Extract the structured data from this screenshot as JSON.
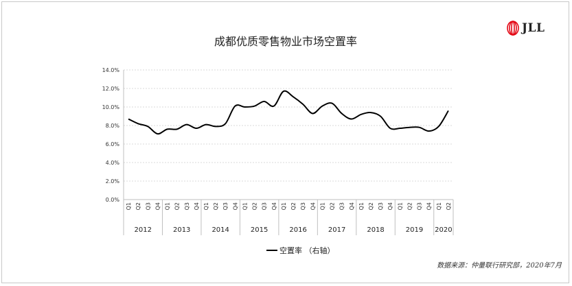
{
  "logo": {
    "text": "JLL",
    "icon": "jll-logo-icon",
    "color": "#e30613"
  },
  "source_note": "数据来源：仲量联行研究部，2020年7月",
  "chart_data": {
    "type": "line",
    "title": "成都优质零售物业市场空置率",
    "xlabel": "",
    "ylabel": "",
    "ylim": [
      0,
      14
    ],
    "y_ticks": [
      "0.0%",
      "2.0%",
      "4.0%",
      "6.0%",
      "8.0%",
      "10.0%",
      "12.0%",
      "14.0%"
    ],
    "grid": true,
    "legend": "bottom-center",
    "line_color": "#000000",
    "x": [
      "2012 Q1",
      "2012 Q2",
      "2012 Q3",
      "2012 Q4",
      "2013 Q1",
      "2013 Q2",
      "2013 Q3",
      "2013 Q4",
      "2014 Q1",
      "2014 Q2",
      "2014 Q3",
      "2014 Q4",
      "2015 Q1",
      "2015 Q2",
      "2015 Q3",
      "2015 Q4",
      "2016 Q1",
      "2016 Q2",
      "2016 Q3",
      "2016 Q4",
      "2017 Q1",
      "2017 Q2",
      "2017 Q3",
      "2017 Q4",
      "2018 Q1",
      "2018 Q2",
      "2018 Q3",
      "2018 Q4",
      "2019 Q1",
      "2019 Q2",
      "2019 Q3",
      "2019 Q4",
      "2020 Q1",
      "2020 Q2"
    ],
    "quarter_labels": [
      "Q1",
      "Q2",
      "Q3",
      "Q4",
      "Q1",
      "Q2",
      "Q3",
      "Q4",
      "Q1",
      "Q2",
      "Q3",
      "Q4",
      "Q1",
      "Q2",
      "Q3",
      "Q4",
      "Q1",
      "Q2",
      "Q3",
      "Q4",
      "Q1",
      "Q2",
      "Q3",
      "Q4",
      "Q1",
      "Q2",
      "Q3",
      "Q4",
      "Q1",
      "Q2",
      "Q3",
      "Q4",
      "Q1",
      "Q2"
    ],
    "year_groups": [
      {
        "year": "2012",
        "count": 4
      },
      {
        "year": "2013",
        "count": 4
      },
      {
        "year": "2014",
        "count": 4
      },
      {
        "year": "2015",
        "count": 4
      },
      {
        "year": "2016",
        "count": 4
      },
      {
        "year": "2017",
        "count": 4
      },
      {
        "year": "2018",
        "count": 4
      },
      {
        "year": "2019",
        "count": 4
      },
      {
        "year": "2020",
        "count": 2
      }
    ],
    "series": [
      {
        "name": "空置率 （右轴）",
        "values": [
          8.7,
          8.2,
          7.9,
          7.1,
          7.6,
          7.6,
          8.1,
          7.7,
          8.1,
          7.9,
          8.2,
          10.1,
          10.0,
          10.1,
          10.6,
          10.1,
          11.7,
          11.1,
          10.3,
          9.3,
          10.1,
          10.4,
          9.3,
          8.7,
          9.2,
          9.4,
          9.0,
          7.7,
          7.7,
          7.8,
          7.8,
          7.4,
          7.9,
          9.6
        ],
        "unit": "%"
      }
    ]
  }
}
